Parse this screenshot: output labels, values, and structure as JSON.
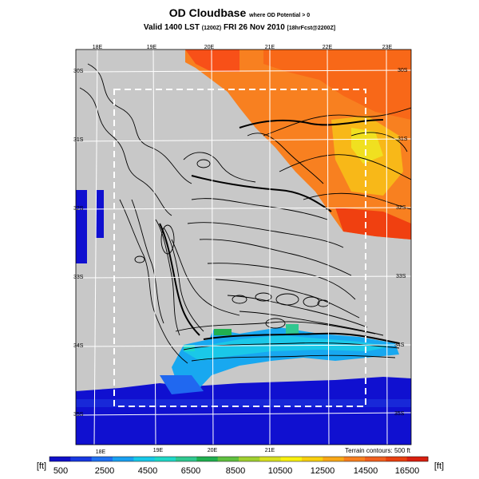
{
  "header": {
    "title": "OD Cloudbase",
    "title_suffix": "where OD Potential > 0",
    "valid_prefix": "Valid 1400 LST",
    "valid_utc": "(1200Z)",
    "valid_date": "FRI 26 Nov 2010",
    "forecast_info": "[18hrFcst@2200Z]"
  },
  "map": {
    "lon_labels": [
      "18E",
      "19E",
      "20E",
      "21E",
      "22E",
      "23E"
    ],
    "lat_labels": [
      "30S",
      "31S",
      "32S",
      "33S",
      "34S",
      "35S"
    ],
    "terrain_note": "Terrain contours: 500 ft"
  },
  "legend": {
    "unit_left": "[ft]",
    "unit_right": "[ft]",
    "tick_labels": [
      "500",
      "2500",
      "4500",
      "6500",
      "8500",
      "10500",
      "12500",
      "14500",
      "16500"
    ],
    "colors": [
      "#1010c8",
      "#1838e0",
      "#2070f0",
      "#1aa0f0",
      "#18c8e8",
      "#20d8c8",
      "#30c890",
      "#20b050",
      "#60c040",
      "#a0d030",
      "#d8e020",
      "#f8f010",
      "#f8d010",
      "#f8a818",
      "#f88020",
      "#f06020",
      "#e84010",
      "#d82010"
    ]
  },
  "colors": {
    "land": "#c8c8c8",
    "ocean_deep": "#1010d0",
    "ocean_mid": "#2050f0",
    "cloud_low": "#18b8f0",
    "cloud_high": "#f87020"
  }
}
